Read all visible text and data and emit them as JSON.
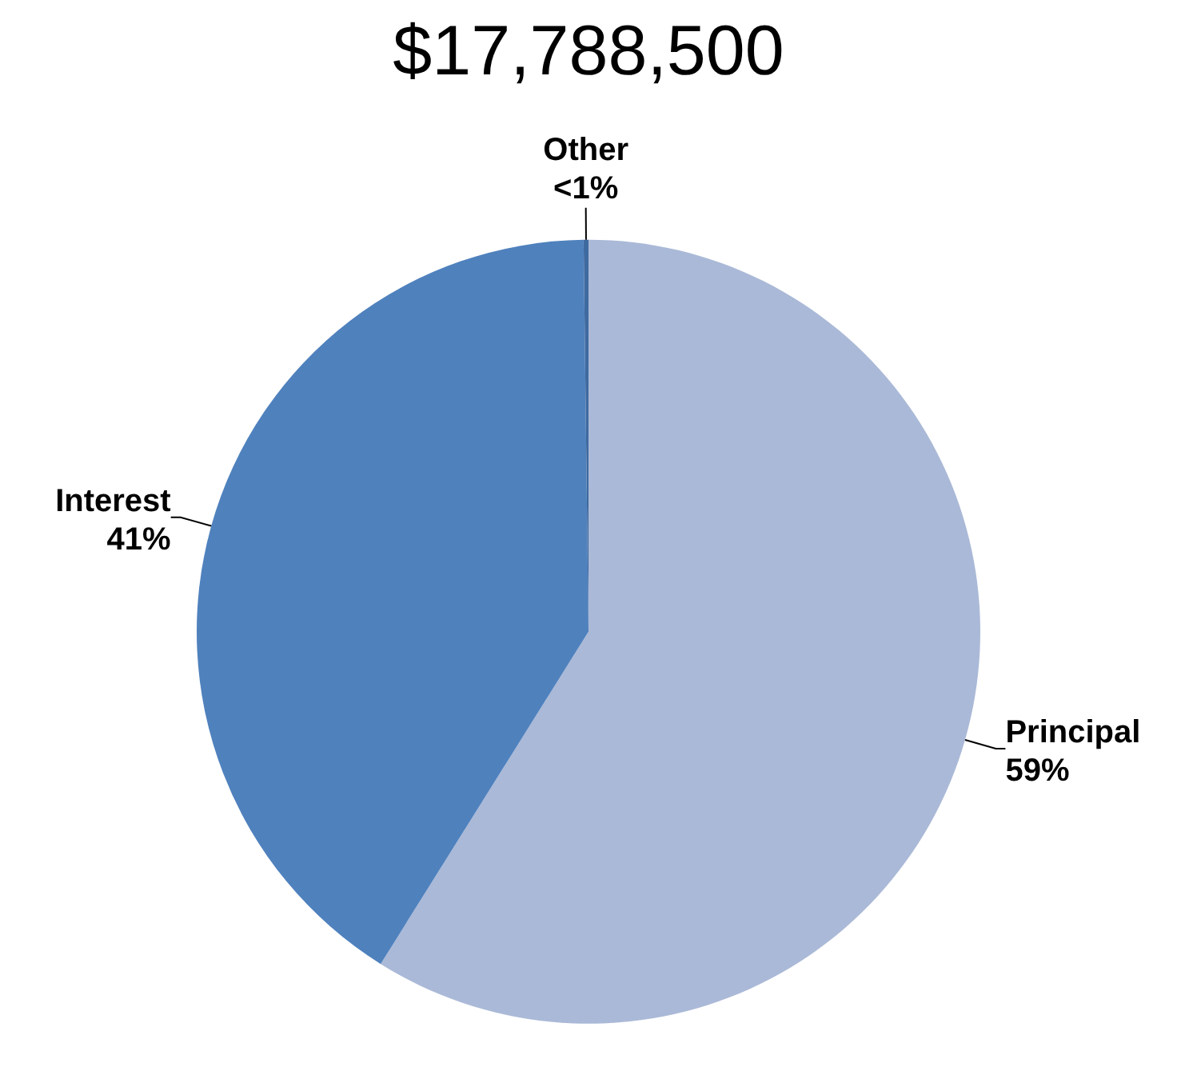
{
  "chart_data": {
    "type": "pie",
    "title": "$17,788,500",
    "categories": [
      "Principal",
      "Interest",
      "Other"
    ],
    "values": [
      58.9,
      40.9,
      0.2
    ],
    "value_labels": [
      "59%",
      "41%",
      "<1%"
    ],
    "colors": [
      "#aab9d7",
      "#4f81bd",
      "#3f6aa0"
    ],
    "legend": false
  }
}
